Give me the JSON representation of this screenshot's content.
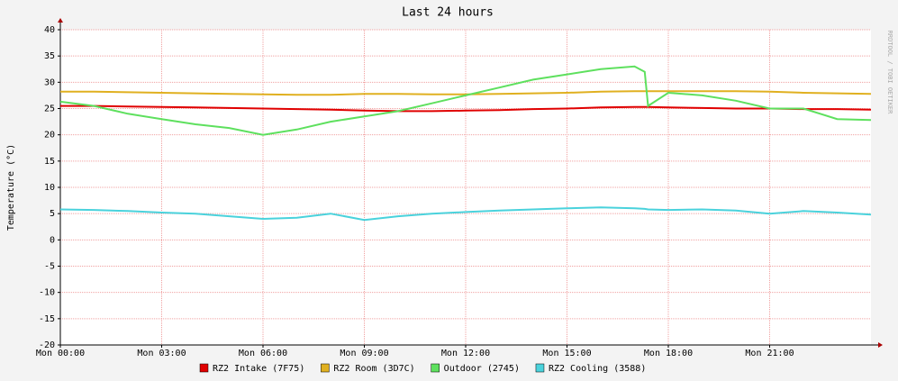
{
  "chart_data": {
    "type": "line",
    "title": "Last 24 hours",
    "y_label": "Temperature (°C)",
    "side_note": "RRDTOOL / TOBI OETIKER",
    "x": [
      0,
      1,
      2,
      3,
      4,
      5,
      6,
      7,
      8,
      9,
      10,
      11,
      12,
      13,
      14,
      15,
      16,
      17,
      17.3,
      17.4,
      18,
      19,
      20,
      21,
      22,
      23,
      24
    ],
    "xlim": [
      0,
      24
    ],
    "xticks": [
      {
        "value": 0,
        "label": "Mon 00:00"
      },
      {
        "value": 3,
        "label": "Mon 03:00"
      },
      {
        "value": 6,
        "label": "Mon 06:00"
      },
      {
        "value": 9,
        "label": "Mon 09:00"
      },
      {
        "value": 12,
        "label": "Mon 12:00"
      },
      {
        "value": 15,
        "label": "Mon 15:00"
      },
      {
        "value": 18,
        "label": "Mon 18:00"
      },
      {
        "value": 21,
        "label": "Mon 21:00"
      }
    ],
    "ylim": [
      -20,
      40
    ],
    "yticks": [
      -20,
      -15,
      -10,
      -5,
      0,
      5,
      10,
      15,
      20,
      25,
      30,
      35,
      40
    ],
    "grid": true,
    "legend": "bottom",
    "series": [
      {
        "name": "RZ2 Intake (7F75)",
        "color": "#e00000",
        "values": [
          25.5,
          25.5,
          25.4,
          25.3,
          25.2,
          25.1,
          25.0,
          24.9,
          24.8,
          24.6,
          24.5,
          24.5,
          24.6,
          24.7,
          24.9,
          25.0,
          25.2,
          25.3,
          25.3,
          25.3,
          25.2,
          25.1,
          25.0,
          25.0,
          24.9,
          24.9,
          24.8
        ]
      },
      {
        "name": "RZ2 Room (3D7C)",
        "color": "#e0b020",
        "values": [
          28.2,
          28.2,
          28.1,
          28.0,
          27.9,
          27.8,
          27.7,
          27.6,
          27.6,
          27.8,
          27.8,
          27.7,
          27.7,
          27.8,
          27.9,
          28.0,
          28.2,
          28.3,
          28.3,
          28.3,
          28.3,
          28.3,
          28.3,
          28.2,
          28.0,
          27.9,
          27.8
        ]
      },
      {
        "name": "Outdoor (2745)",
        "color": "#5ee05e",
        "values": [
          26.3,
          25.5,
          24.0,
          23.0,
          22.0,
          21.3,
          20.0,
          21.0,
          22.5,
          23.5,
          24.5,
          26.0,
          27.5,
          29.0,
          30.5,
          31.5,
          32.5,
          33.0,
          32.0,
          25.5,
          28.0,
          27.5,
          26.5,
          25.0,
          25.0,
          23.0,
          22.8
        ]
      },
      {
        "name": "RZ2 Cooling (3588)",
        "color": "#4ad2dc",
        "values": [
          5.8,
          5.7,
          5.5,
          5.2,
          5.0,
          4.5,
          4.0,
          4.2,
          5.0,
          3.8,
          4.5,
          5.0,
          5.3,
          5.6,
          5.8,
          6.0,
          6.2,
          6.0,
          5.9,
          5.8,
          5.7,
          5.8,
          5.6,
          5.0,
          5.5,
          5.2,
          4.8
        ]
      }
    ]
  }
}
